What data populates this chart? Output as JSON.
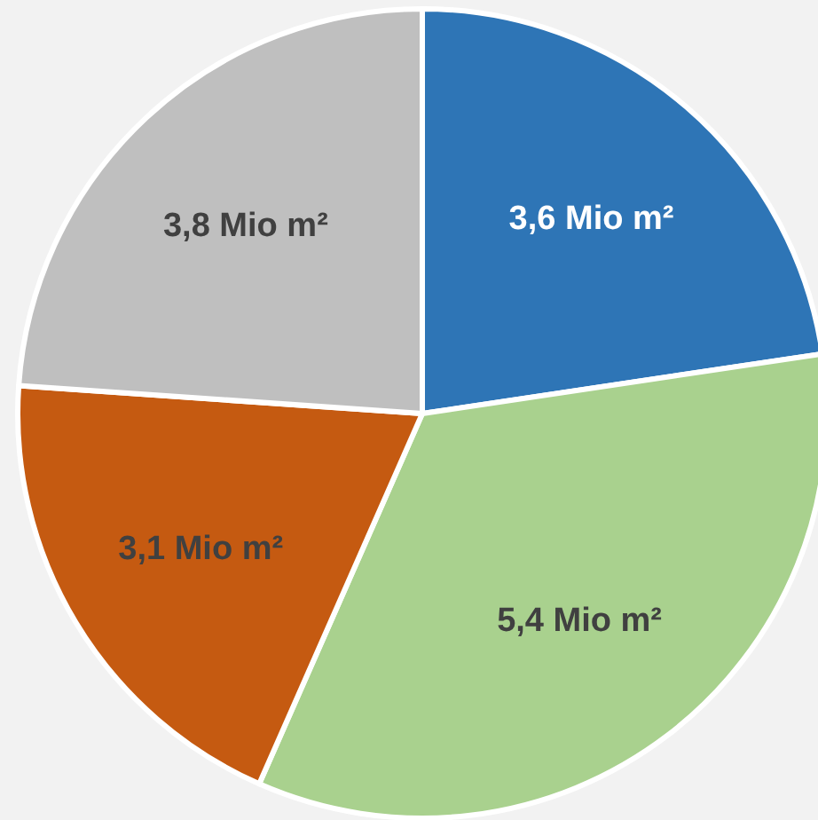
{
  "chart_data": {
    "type": "pie",
    "categories": [
      null,
      null,
      null,
      null
    ],
    "values": [
      3.6,
      5.4,
      3.1,
      3.8
    ],
    "colors": [
      "#2e75b6",
      "#a9d18e",
      "#c55a11",
      "#bfbfbf"
    ],
    "value_labels": [
      "3,6 Mio m²",
      "5,4 Mio m²",
      "3,1 Mio m²",
      "3,8 Mio m²"
    ]
  }
}
